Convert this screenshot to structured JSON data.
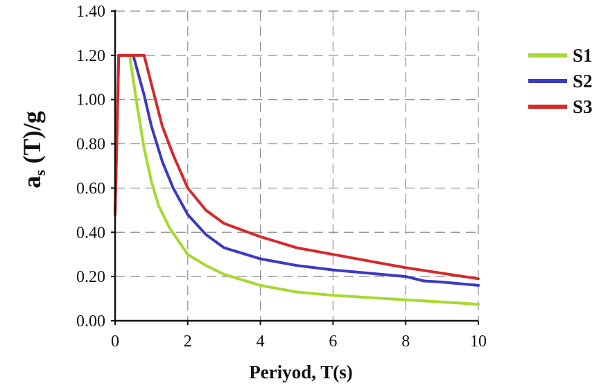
{
  "chart_data": {
    "type": "line",
    "title": "",
    "xlabel": "Periyod, T(s)",
    "ylabel_main": "a",
    "ylabel_sub": "s",
    "ylabel_rest": " (T)/g",
    "xlim": [
      0,
      10
    ],
    "ylim": [
      0,
      1.4
    ],
    "xticks": [
      "0",
      "2",
      "4",
      "6",
      "8",
      "10"
    ],
    "yticks": [
      "0.00",
      "0.20",
      "0.40",
      "0.60",
      "0.80",
      "1.00",
      "1.20",
      "1.40"
    ],
    "grid": true,
    "legend_position": "right",
    "series": [
      {
        "name": "S1",
        "color": "#a6d930",
        "x": [
          0,
          0.1,
          0.2,
          0.4,
          0.6,
          0.8,
          1.0,
          1.2,
          1.5,
          2.0,
          2.5,
          3.0,
          4.0,
          5.0,
          6.0,
          7.0,
          8.0,
          9.0,
          10.0
        ],
        "y": [
          0.48,
          1.2,
          1.2,
          1.2,
          0.98,
          0.78,
          0.63,
          0.52,
          0.42,
          0.3,
          0.25,
          0.21,
          0.16,
          0.13,
          0.115,
          0.105,
          0.095,
          0.085,
          0.075
        ]
      },
      {
        "name": "S2",
        "color": "#3b3bbf",
        "x": [
          0,
          0.1,
          0.2,
          0.5,
          0.8,
          1.0,
          1.3,
          1.6,
          2.0,
          2.5,
          3.0,
          4.0,
          5.0,
          6.0,
          7.0,
          8.0,
          8.5,
          9.0,
          10.0
        ],
        "y": [
          0.48,
          1.2,
          1.2,
          1.2,
          1.02,
          0.88,
          0.72,
          0.6,
          0.48,
          0.39,
          0.33,
          0.28,
          0.25,
          0.23,
          0.215,
          0.2,
          0.18,
          0.175,
          0.16
        ]
      },
      {
        "name": "S3",
        "color": "#d42a2a",
        "x": [
          0,
          0.1,
          0.2,
          0.5,
          0.8,
          1.0,
          1.3,
          1.6,
          2.0,
          2.5,
          3.0,
          4.0,
          5.0,
          6.0,
          7.0,
          8.0,
          9.0,
          10.0
        ],
        "y": [
          0.48,
          1.2,
          1.2,
          1.2,
          1.2,
          1.07,
          0.88,
          0.75,
          0.6,
          0.5,
          0.44,
          0.38,
          0.33,
          0.3,
          0.27,
          0.24,
          0.215,
          0.19
        ]
      }
    ]
  }
}
